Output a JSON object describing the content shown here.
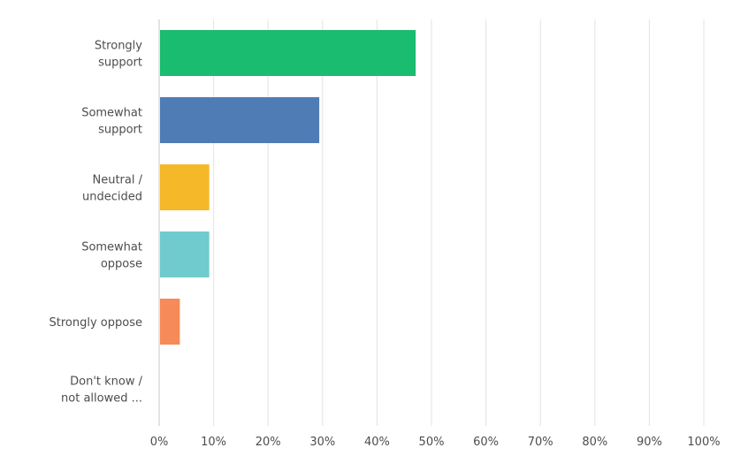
{
  "chart_data": {
    "type": "bar",
    "orientation": "horizontal",
    "categories": [
      [
        "Strongly",
        "support"
      ],
      [
        "Somewhat",
        "support"
      ],
      [
        "Neutral /",
        "undecided"
      ],
      [
        "Somewhat",
        "oppose"
      ],
      [
        "Strongly oppose"
      ],
      [
        "Don't know /",
        "not allowed ..."
      ]
    ],
    "values": [
      47.1,
      29.4,
      9.2,
      9.2,
      3.8,
      0
    ],
    "colors": [
      "#1abc6f",
      "#507cb6",
      "#f5b828",
      "#6fcbcd",
      "#f68a58",
      "#cccccc"
    ],
    "xlim": [
      0,
      100
    ],
    "xticks": [
      "0%",
      "10%",
      "20%",
      "30%",
      "40%",
      "50%",
      "60%",
      "70%",
      "80%",
      "90%",
      "100%"
    ],
    "grid": true,
    "gridline_color": "#e3e3e3",
    "axis_color": "#c7c7c7"
  }
}
